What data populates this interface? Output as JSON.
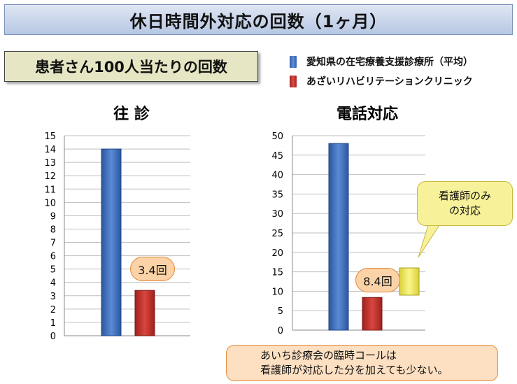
{
  "header": {
    "title": "休日時間外対応の回数（1ヶ月）"
  },
  "subtitle": "患者さん100人当たりの回数",
  "legend": [
    {
      "label": "愛知県の在宅療養支援診療所（平均）",
      "color": "#3b6fc4"
    },
    {
      "label": "あざいリハビリテーションクリニック",
      "color": "#c0302c"
    }
  ],
  "chart_data": [
    {
      "type": "bar",
      "title": "往 診",
      "series_labels": [
        "愛知県の在宅療養支援診療所（平均）",
        "あざいリハビリテーションクリニック"
      ],
      "values": [
        14,
        3.4
      ],
      "colors": [
        "#3b6fc4",
        "#c0302c"
      ],
      "ylim": [
        0,
        15
      ],
      "yticks": [
        "0",
        "1",
        "2",
        "3",
        "4",
        "5",
        "6",
        "7",
        "8",
        "9",
        "10",
        "11",
        "12",
        "13",
        "14",
        "15"
      ],
      "annotation": "3.4回",
      "grid": true
    },
    {
      "type": "bar",
      "title": "電話対応",
      "series_labels": [
        "愛知県の在宅療養支援診療所（平均）",
        "あざいリハビリテーションクリニック"
      ],
      "values": [
        48,
        8.4
      ],
      "colors": [
        "#3b6fc4",
        "#c0302c"
      ],
      "ylim": [
        0,
        50
      ],
      "yticks": [
        "0",
        "5",
        "10",
        "15",
        "20",
        "25",
        "30",
        "35",
        "40",
        "45",
        "50"
      ],
      "annotation": "8.4回",
      "extra_bar": {
        "label": "看護師のみ\nの対応",
        "range": [
          9,
          16
        ],
        "color": "#f2ec6a"
      },
      "grid": true
    }
  ],
  "bottom_note": "あいち診療会の臨時コールは\n看護師が対応した分を加えても少ない。"
}
